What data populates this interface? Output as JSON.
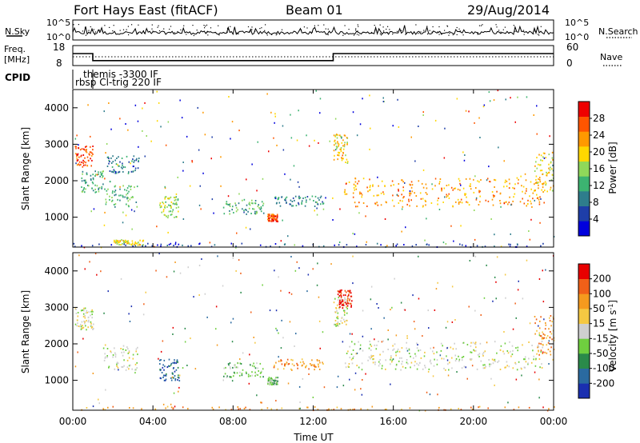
{
  "header": {
    "station": "Fort Hays East (fitACF)",
    "beam": "Beam 01",
    "date": "29/Aug/2014"
  },
  "noise_panel": {
    "left_label": "N.Sky",
    "right_label": "N.Search",
    "left_ticks": [
      "10^5",
      "10^0"
    ],
    "right_ticks": [
      "10^5",
      "10^0"
    ]
  },
  "freq_panel": {
    "left_label_1": "Freq.",
    "left_label_2": "[MHz]",
    "left_ticks": [
      "18",
      "8"
    ],
    "right_label": "Nave",
    "right_ticks": [
      "60",
      "0"
    ],
    "freq_steps": [
      {
        "x": 0.0,
        "y": 14
      },
      {
        "x": 1.0,
        "y": 14
      },
      {
        "x": 1.0,
        "y": 10.5
      },
      {
        "x": 13.0,
        "y": 10.5
      },
      {
        "x": 13.0,
        "y": 14
      },
      {
        "x": 24.0,
        "y": 14
      }
    ],
    "xlim": [
      0,
      24
    ],
    "ylim": [
      8,
      18
    ]
  },
  "cpid": {
    "label": "CPID",
    "programs": [
      {
        "name": "themis -3300 IF",
        "start": 1.0
      },
      {
        "name": "rbsp Cl-trig 220 IF",
        "start": 0.0
      }
    ]
  },
  "chart_data": [
    {
      "type": "heatmap",
      "ylabel": "Slant Range [km]",
      "xlim": [
        0,
        24
      ],
      "ylim": [
        180,
        4500
      ],
      "y_ticks": [
        1000,
        2000,
        3000,
        4000
      ],
      "colorbar": {
        "label": "Power [dB]",
        "ticks": [
          "28",
          "24",
          "20",
          "16",
          "12",
          "8",
          "4"
        ],
        "colors": [
          "#0000dd",
          "#1e3ea8",
          "#2e7d8c",
          "#3cb371",
          "#8fd85a",
          "#ffd700",
          "#ff9900",
          "#ff5500",
          "#ee0000"
        ]
      },
      "regions": [
        {
          "t0": 0.1,
          "t1": 1.0,
          "r0": 2400,
          "r1": 3000,
          "level": 7
        },
        {
          "t0": 0.4,
          "t1": 1.5,
          "r0": 1700,
          "r1": 2300,
          "level": 3
        },
        {
          "t0": 1.5,
          "t1": 3.2,
          "r0": 1300,
          "r1": 2000,
          "level": 3
        },
        {
          "t0": 1.7,
          "t1": 3.3,
          "r0": 2200,
          "r1": 2700,
          "level": 2
        },
        {
          "t0": 4.3,
          "t1": 5.3,
          "r0": 1000,
          "r1": 1600,
          "level": 4
        },
        {
          "t0": 2.0,
          "t1": 3.5,
          "r0": 250,
          "r1": 400,
          "level": 5
        },
        {
          "t0": 7.5,
          "t1": 9.5,
          "r0": 1100,
          "r1": 1500,
          "level": 3
        },
        {
          "t0": 9.7,
          "t1": 10.2,
          "r0": 900,
          "r1": 1100,
          "level": 7
        },
        {
          "t0": 10.0,
          "t1": 12.5,
          "r0": 1300,
          "r1": 1600,
          "level": 2
        },
        {
          "t0": 13.0,
          "t1": 13.7,
          "r0": 2500,
          "r1": 3300,
          "level": 5
        },
        {
          "t0": 13.5,
          "t1": 23.5,
          "r0": 1300,
          "r1": 2100,
          "level": 6
        },
        {
          "t0": 23.0,
          "t1": 24.0,
          "r0": 1700,
          "r1": 2800,
          "level": 5
        },
        {
          "t0": 0.0,
          "t1": 24.0,
          "r0": 200,
          "r1": 300,
          "level": 1
        }
      ]
    },
    {
      "type": "heatmap",
      "xlabel": "Time UT",
      "ylabel": "Slant Range [km]",
      "xlim": [
        0,
        24
      ],
      "ylim": [
        180,
        4500
      ],
      "x_ticks": [
        "00:00",
        "04:00",
        "08:00",
        "12:00",
        "16:00",
        "20:00",
        "00:00"
      ],
      "y_ticks": [
        1000,
        2000,
        3000,
        4000
      ],
      "colorbar": {
        "label": "Velocity [m s^-1]",
        "ticks": [
          "200",
          "100",
          "50",
          "15",
          "-15",
          "-50",
          "-100",
          "-200"
        ],
        "colors": [
          "#1a2fb0",
          "#2a6aa0",
          "#2a8a4a",
          "#6fcf3f",
          "#cfcfcf",
          "#f5c842",
          "#f59a1e",
          "#f06018",
          "#e80000"
        ]
      },
      "regions": [
        {
          "t0": 0.1,
          "t1": 1.0,
          "r0": 2400,
          "r1": 3000,
          "level": 4
        },
        {
          "t0": 1.5,
          "t1": 3.2,
          "r0": 1300,
          "r1": 2000,
          "level": 4
        },
        {
          "t0": 4.3,
          "t1": 5.3,
          "r0": 1000,
          "r1": 1600,
          "level": 1
        },
        {
          "t0": 7.5,
          "t1": 9.5,
          "r0": 1100,
          "r1": 1500,
          "level": 3
        },
        {
          "t0": 9.7,
          "t1": 10.2,
          "r0": 900,
          "r1": 1100,
          "level": 3
        },
        {
          "t0": 10.0,
          "t1": 12.5,
          "r0": 1300,
          "r1": 1600,
          "level": 6
        },
        {
          "t0": 13.0,
          "t1": 13.7,
          "r0": 2500,
          "r1": 3300,
          "level": 4
        },
        {
          "t0": 13.2,
          "t1": 13.9,
          "r0": 3000,
          "r1": 3500,
          "level": 8
        },
        {
          "t0": 13.5,
          "t1": 23.5,
          "r0": 1300,
          "r1": 2100,
          "level": 4
        },
        {
          "t0": 23.0,
          "t1": 24.0,
          "r0": 1700,
          "r1": 2800,
          "level": 6
        },
        {
          "t0": 0.0,
          "t1": 24.0,
          "r0": 200,
          "r1": 300,
          "level": 6
        }
      ]
    }
  ]
}
